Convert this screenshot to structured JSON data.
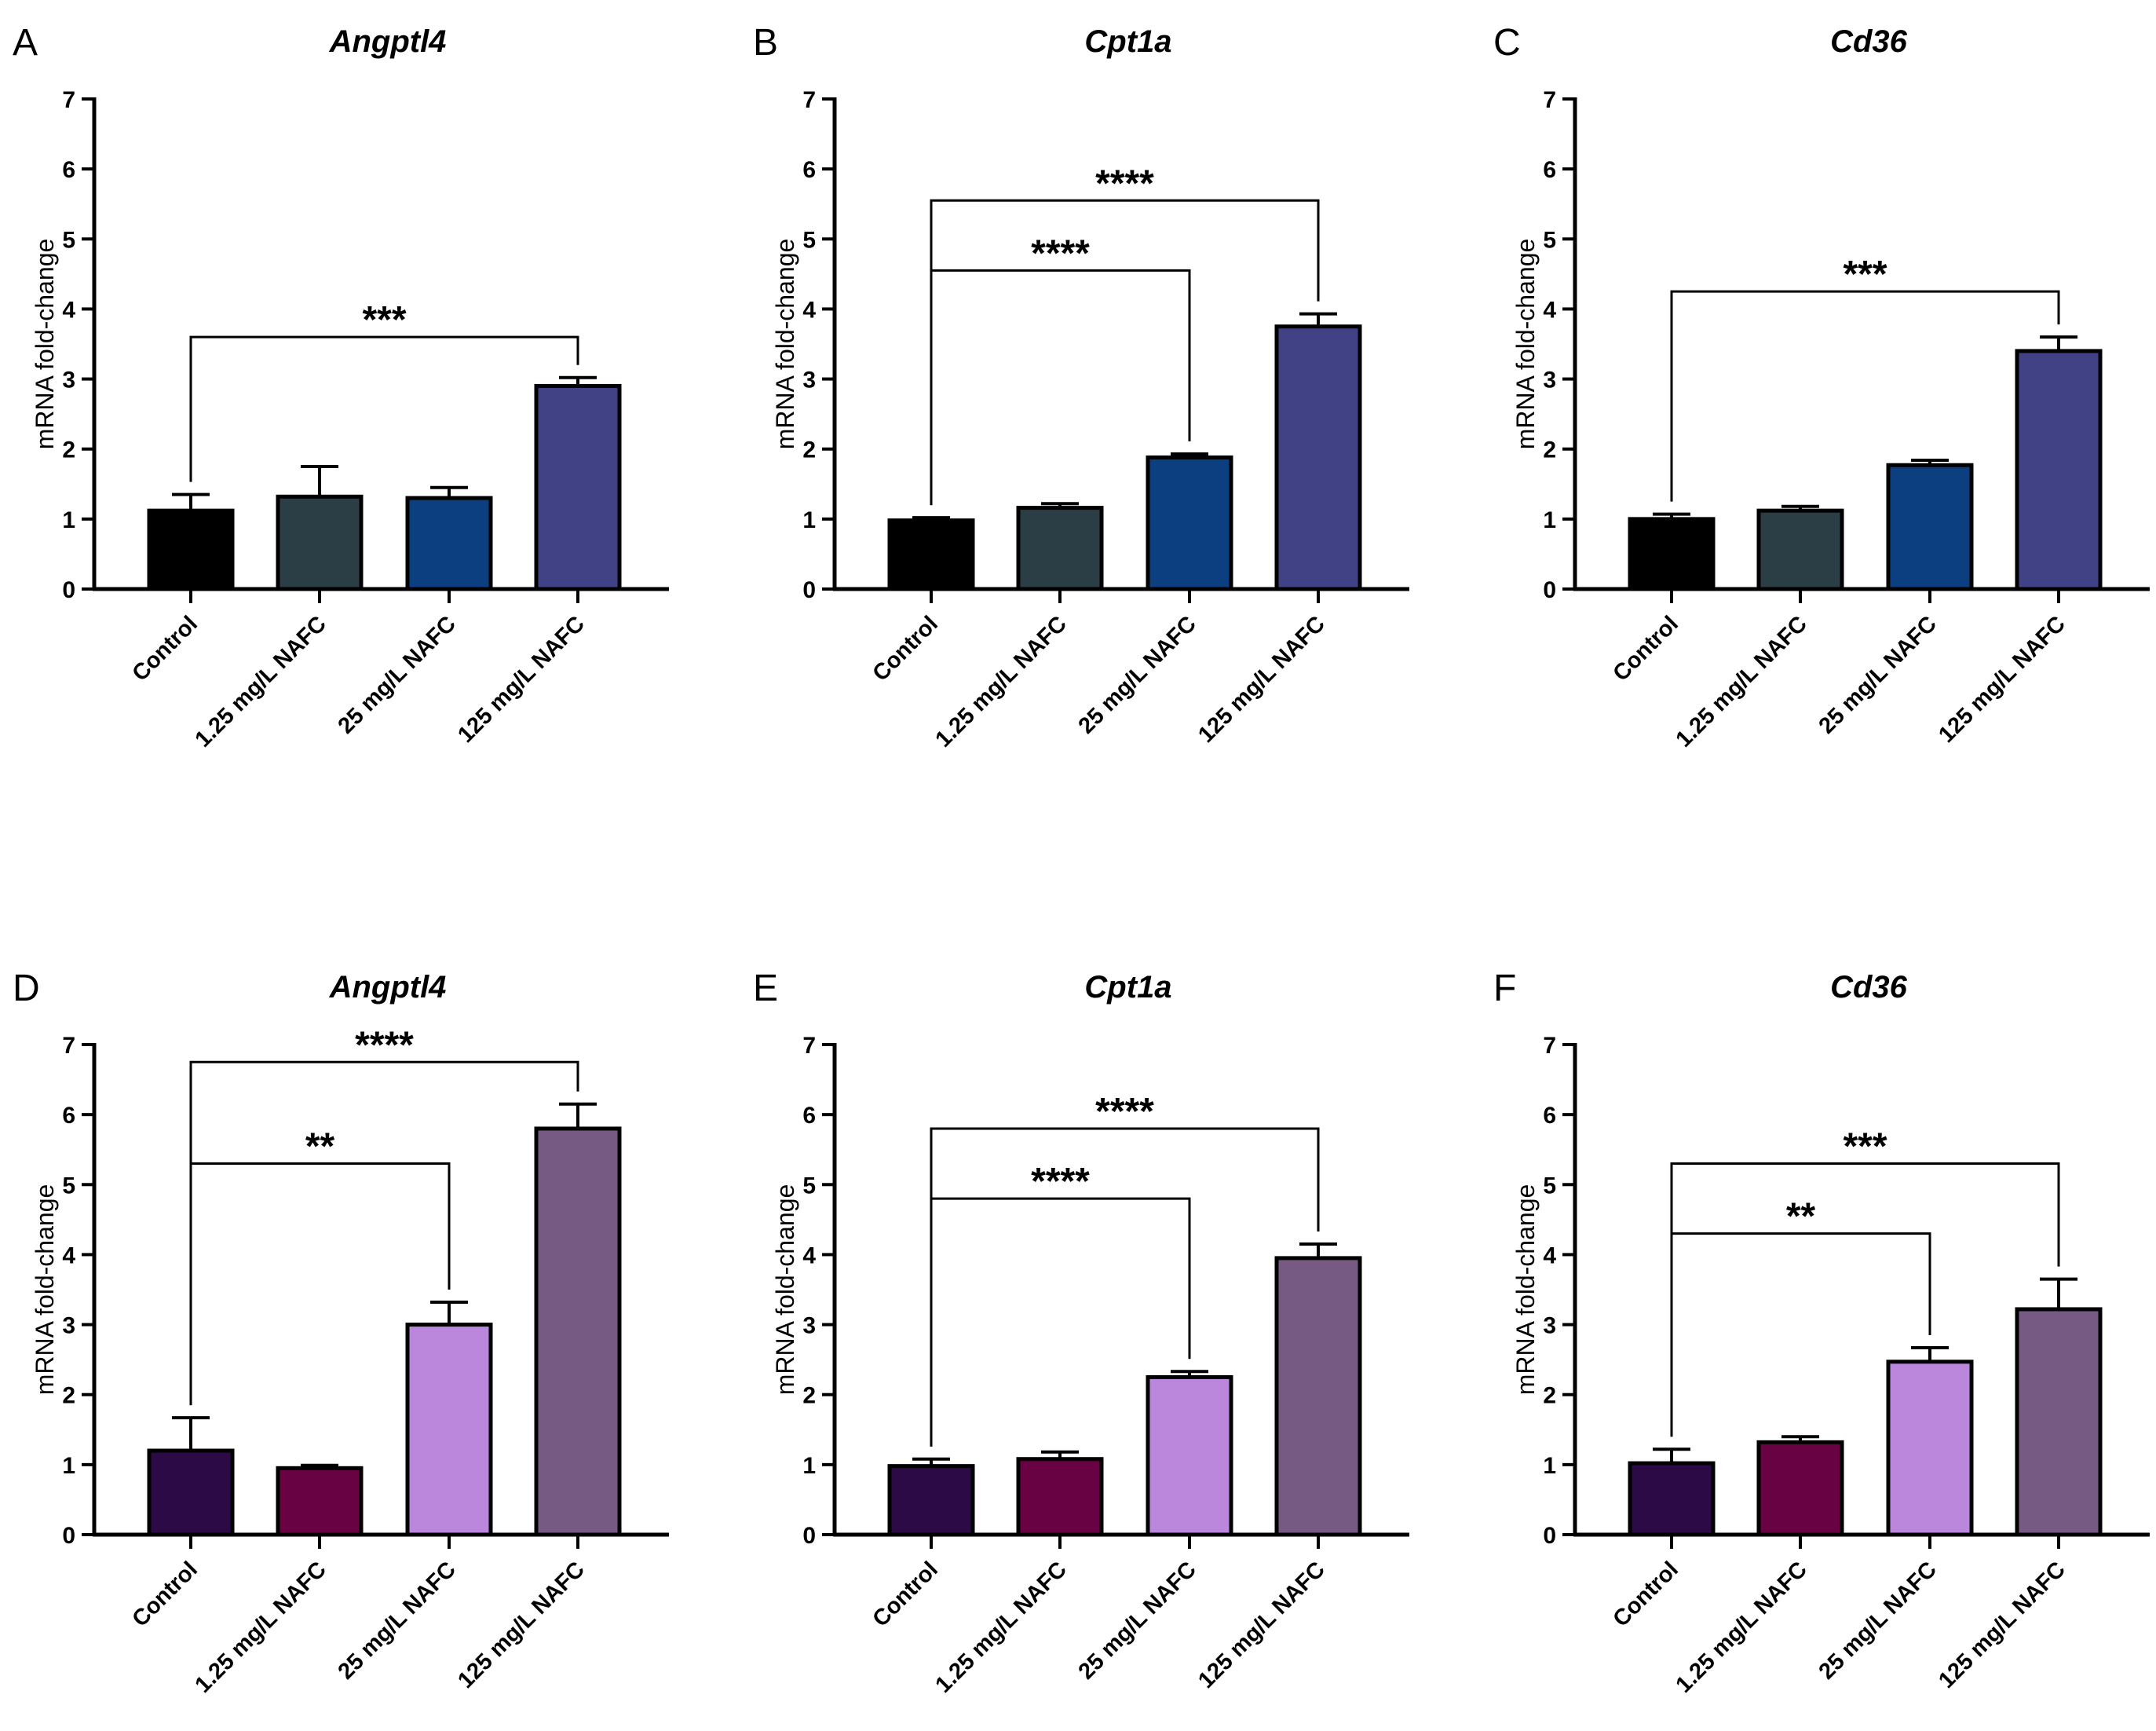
{
  "figure": {
    "panel_count": 6
  },
  "chart_data": [
    {
      "panel": "A",
      "type": "bar",
      "title": "Angptl4",
      "xlabel": "",
      "ylabel": "mRNA fold-change",
      "ylim": [
        0,
        7
      ],
      "yticks": [
        0,
        1,
        2,
        3,
        4,
        5,
        6,
        7
      ],
      "categories": [
        "Control",
        "1.25 mg/L NAFC",
        "25 mg/L NAFC",
        "125 mg/L NAFC"
      ],
      "values": [
        1.12,
        1.32,
        1.3,
        2.9
      ],
      "errors": [
        0.23,
        0.43,
        0.15,
        0.12
      ],
      "colors": [
        "#000000",
        "#2b3d45",
        "#0c3f80",
        "#414286"
      ],
      "significance": [
        {
          "from": 0,
          "to": 3,
          "label": "***",
          "level": 3.6
        }
      ]
    },
    {
      "panel": "B",
      "type": "bar",
      "title": "Cpt1a",
      "xlabel": "",
      "ylabel": "mRNA fold-change",
      "ylim": [
        0,
        7
      ],
      "yticks": [
        0,
        1,
        2,
        3,
        4,
        5,
        6,
        7
      ],
      "categories": [
        "Control",
        "1.25 mg/L NAFC",
        "25 mg/L NAFC",
        "125 mg/L NAFC"
      ],
      "values": [
        0.98,
        1.16,
        1.88,
        3.75
      ],
      "errors": [
        0.04,
        0.06,
        0.05,
        0.18
      ],
      "colors": [
        "#000000",
        "#2b3d45",
        "#0c3f80",
        "#414286"
      ],
      "significance": [
        {
          "from": 0,
          "to": 2,
          "label": "****",
          "level": 4.55
        },
        {
          "from": 0,
          "to": 3,
          "label": "****",
          "level": 5.55
        }
      ]
    },
    {
      "panel": "C",
      "type": "bar",
      "title": "Cd36",
      "xlabel": "",
      "ylabel": "mRNA fold-change",
      "ylim": [
        0,
        7
      ],
      "yticks": [
        0,
        1,
        2,
        3,
        4,
        5,
        6,
        7
      ],
      "categories": [
        "Control",
        "1.25 mg/L NAFC",
        "25 mg/L NAFC",
        "125 mg/L NAFC"
      ],
      "values": [
        1.0,
        1.12,
        1.77,
        3.4
      ],
      "errors": [
        0.07,
        0.06,
        0.07,
        0.2
      ],
      "colors": [
        "#000000",
        "#2b3d45",
        "#0c3f80",
        "#414286"
      ],
      "significance": [
        {
          "from": 0,
          "to": 3,
          "label": "***",
          "level": 4.25
        }
      ]
    },
    {
      "panel": "D",
      "type": "bar",
      "title": "Angptl4",
      "xlabel": "",
      "ylabel": "mRNA fold-change",
      "ylim": [
        0,
        7
      ],
      "yticks": [
        0,
        1,
        2,
        3,
        4,
        5,
        6,
        7
      ],
      "categories": [
        "Control",
        "1.25 mg/L NAFC",
        "25 mg/L NAFC",
        "125 mg/L NAFC"
      ],
      "values": [
        1.2,
        0.95,
        3.0,
        5.8
      ],
      "errors": [
        0.47,
        0.04,
        0.32,
        0.35
      ],
      "colors": [
        "#2c0a45",
        "#680243",
        "#ba87dc",
        "#775a84"
      ],
      "significance": [
        {
          "from": 0,
          "to": 2,
          "label": "**",
          "level": 5.3
        },
        {
          "from": 0,
          "to": 3,
          "label": "****",
          "level": 6.75
        }
      ]
    },
    {
      "panel": "E",
      "type": "bar",
      "title": "Cpt1a",
      "xlabel": "",
      "ylabel": "mRNA fold-change",
      "ylim": [
        0,
        7
      ],
      "yticks": [
        0,
        1,
        2,
        3,
        4,
        5,
        6,
        7
      ],
      "categories": [
        "Control",
        "1.25 mg/L NAFC",
        "25 mg/L NAFC",
        "125 mg/L NAFC"
      ],
      "values": [
        0.98,
        1.08,
        2.25,
        3.95
      ],
      "errors": [
        0.1,
        0.1,
        0.08,
        0.2
      ],
      "colors": [
        "#2c0a45",
        "#680243",
        "#ba87dc",
        "#775a84"
      ],
      "significance": [
        {
          "from": 0,
          "to": 2,
          "label": "****",
          "level": 4.8
        },
        {
          "from": 0,
          "to": 3,
          "label": "****",
          "level": 5.8
        }
      ]
    },
    {
      "panel": "F",
      "type": "bar",
      "title": "Cd36",
      "xlabel": "",
      "ylabel": "mRNA fold-change",
      "ylim": [
        0,
        7
      ],
      "yticks": [
        0,
        1,
        2,
        3,
        4,
        5,
        6,
        7
      ],
      "categories": [
        "Control",
        "1.25 mg/L NAFC",
        "25 mg/L NAFC",
        "125 mg/L NAFC"
      ],
      "values": [
        1.02,
        1.32,
        2.47,
        3.22
      ],
      "errors": [
        0.2,
        0.08,
        0.2,
        0.43
      ],
      "colors": [
        "#2c0a45",
        "#680243",
        "#ba87dc",
        "#775a84"
      ],
      "significance": [
        {
          "from": 0,
          "to": 2,
          "label": "**",
          "level": 4.3
        },
        {
          "from": 0,
          "to": 3,
          "label": "***",
          "level": 5.3
        }
      ]
    }
  ]
}
